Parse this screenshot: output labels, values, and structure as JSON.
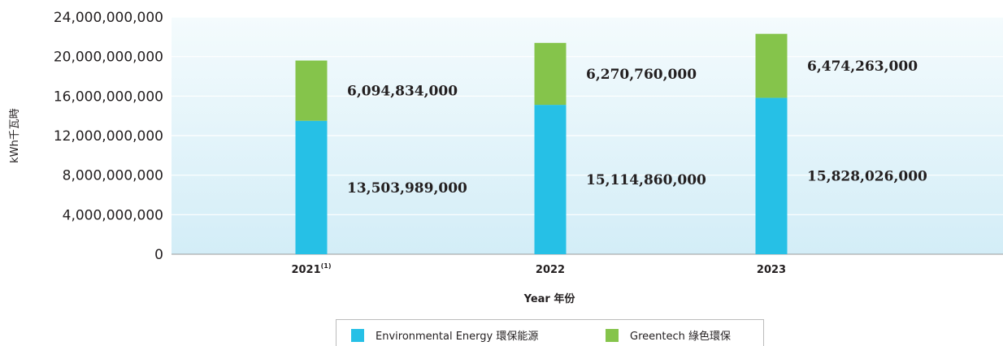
{
  "chart_data": {
    "type": "bar",
    "stacked": true,
    "categories": [
      "2021",
      "2022",
      "2023"
    ],
    "category_superscripts": [
      "(1)",
      "",
      ""
    ],
    "series": [
      {
        "name": "Environmental Energy  環保能源",
        "color": "#26c0e6",
        "values": [
          13503989000,
          15114860000,
          15828026000
        ]
      },
      {
        "name": "Greentech  綠色環保",
        "color": "#85c44b",
        "values": [
          6094834000,
          6270760000,
          6474263000
        ]
      }
    ],
    "value_labels": [
      [
        "13,503,989,000",
        "15,114,860,000",
        "15,828,026,000"
      ],
      [
        "6,094,834,000",
        "6,270,760,000",
        "6,474,263,000"
      ]
    ],
    "xlabel": "Year 年份",
    "ylabel": "kWh千瓦時",
    "ylim": [
      0,
      24000000000
    ],
    "yticks": [
      0,
      4000000000,
      8000000000,
      12000000000,
      16000000000,
      20000000000,
      24000000000
    ],
    "ytick_labels": [
      "0",
      "4,000,000,000",
      "8,000,000,000",
      "12,000,000,000",
      "16,000,000,000",
      "20,000,000,000",
      "24,000,000,000"
    ],
    "grid": true,
    "legend_position": "bottom-center"
  }
}
